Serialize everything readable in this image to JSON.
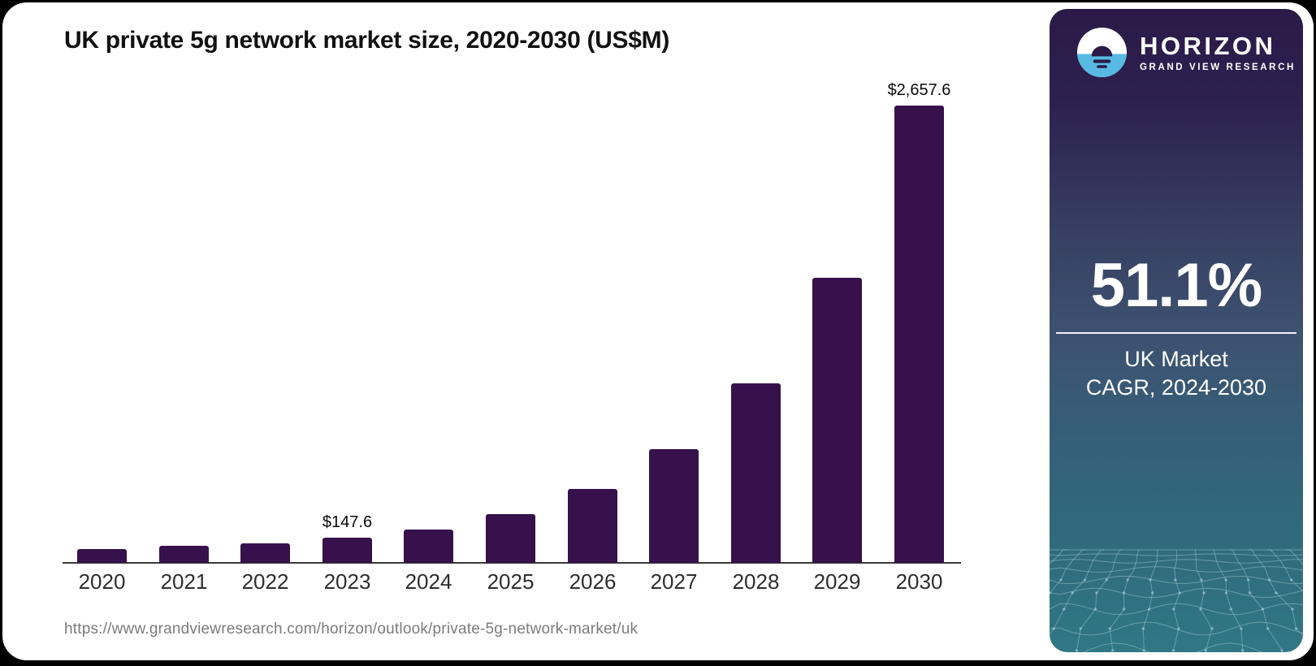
{
  "chart": {
    "title": "UK private 5g network market size, 2020-2030 (US$M)"
  },
  "chart_data": {
    "type": "bar",
    "title": "UK private 5g network market size, 2020-2030 (US$M)",
    "categories": [
      "2020",
      "2021",
      "2022",
      "2023",
      "2024",
      "2025",
      "2026",
      "2027",
      "2028",
      "2029",
      "2030"
    ],
    "values": [
      80,
      100,
      115,
      147.6,
      195,
      285,
      430,
      660,
      1045,
      1655,
      2657.6
    ],
    "value_labels": {
      "2023": "$147.6",
      "2030": "$2,657.6"
    },
    "xlabel": "",
    "ylabel": "",
    "ylim": [
      0,
      2657.6
    ],
    "grid": false,
    "legend": "none",
    "bar_color": "#36114B",
    "axis_color": "#3a3a3a"
  },
  "footer": {
    "source_url": "https://www.grandviewresearch.com/horizon/outlook/private-5g-network-market/uk"
  },
  "panel": {
    "brand_name": "HORIZON",
    "brand_subtitle": "GRAND VIEW RESEARCH",
    "cagr_value": "51.1%",
    "cagr_label_line1": "UK Market",
    "cagr_label_line2": "CAGR, 2024-2030",
    "colors": {
      "gradient_top": "#2B1A48",
      "gradient_mid": "#3D5170",
      "gradient_bottom": "#317785",
      "logo_blue": "#56BAE2",
      "logo_dark": "#2B1A48",
      "mesh_line": "#A9D0D8",
      "text": "#FFFFFF"
    }
  }
}
